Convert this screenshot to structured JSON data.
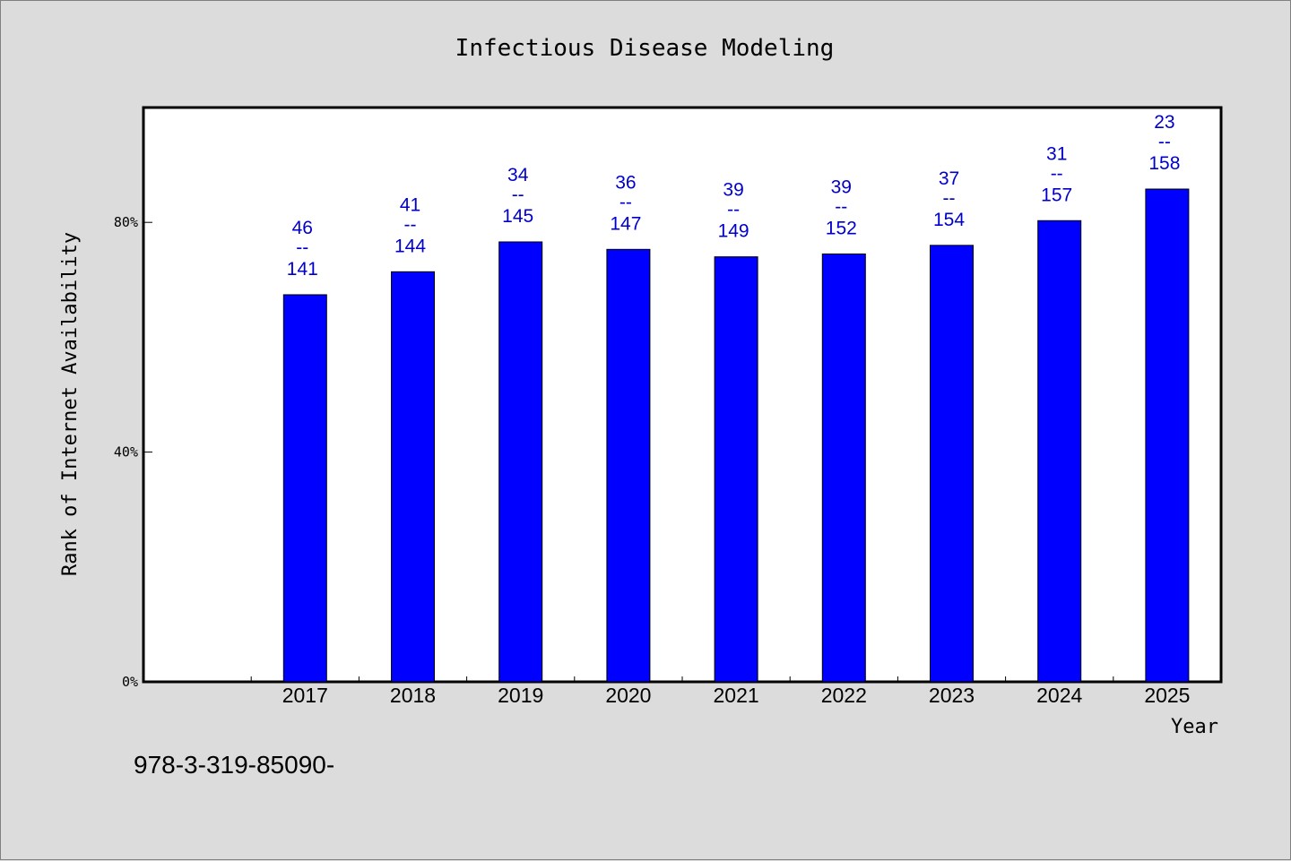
{
  "chart_data": {
    "type": "bar",
    "title": "Infectious Disease Modeling",
    "xlabel": "Year",
    "ylabel": "Rank of Internet Availability",
    "categories": [
      "2017",
      "2018",
      "2019",
      "2020",
      "2021",
      "2022",
      "2023",
      "2024",
      "2025"
    ],
    "values": [
      67.4,
      71.4,
      76.6,
      75.3,
      74.0,
      74.5,
      76.0,
      80.3,
      85.8
    ],
    "rank_labels": [
      {
        "rank": "46",
        "sep": "--",
        "total": "141"
      },
      {
        "rank": "41",
        "sep": "--",
        "total": "144"
      },
      {
        "rank": "34",
        "sep": "--",
        "total": "145"
      },
      {
        "rank": "36",
        "sep": "--",
        "total": "147"
      },
      {
        "rank": "39",
        "sep": "--",
        "total": "149"
      },
      {
        "rank": "39",
        "sep": "--",
        "total": "152"
      },
      {
        "rank": "37",
        "sep": "--",
        "total": "154"
      },
      {
        "rank": "31",
        "sep": "--",
        "total": "157"
      },
      {
        "rank": "23",
        "sep": "--",
        "total": "158"
      }
    ],
    "yticks": [
      0,
      40,
      80
    ],
    "ytick_labels": [
      "0%",
      "40%",
      "80%"
    ],
    "ylim": [
      0,
      100
    ],
    "grid": false,
    "legend": "none",
    "colors": {
      "bar": "#0000ff",
      "label": "#0000cc",
      "background": "#dcdcdc",
      "plot_bg": "#ffffff"
    }
  },
  "footer_text": "978-3-319-85090-"
}
